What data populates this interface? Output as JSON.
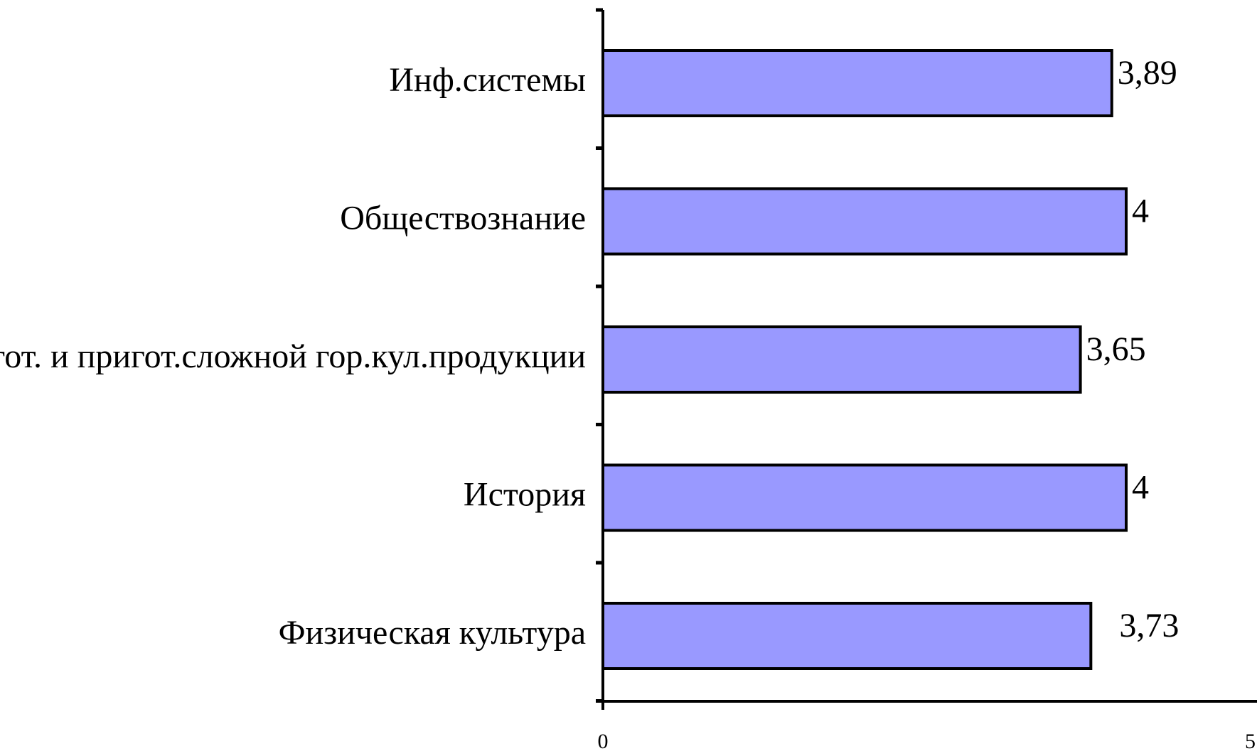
{
  "chart_data": {
    "type": "bar",
    "orientation": "horizontal",
    "categories": [
      "Инф.системы",
      "Обществознание",
      "Орг.процесса пригот. и пригот.сложной гор.кул.продукции",
      "История",
      "Физическая культура"
    ],
    "values": [
      3.89,
      4,
      3.65,
      4,
      3.73
    ],
    "data_labels": [
      "3,89",
      "4",
      "3,65",
      "4",
      "3,73"
    ],
    "x_ticks": [
      "0",
      "5"
    ],
    "xlim": [
      0,
      5
    ],
    "grid": false,
    "legend": "none",
    "title": "",
    "xlabel": "",
    "ylabel": "",
    "colors": {
      "bar_fill": "#9999FF",
      "bar_stroke": "#000000",
      "axis": "#000000"
    }
  }
}
